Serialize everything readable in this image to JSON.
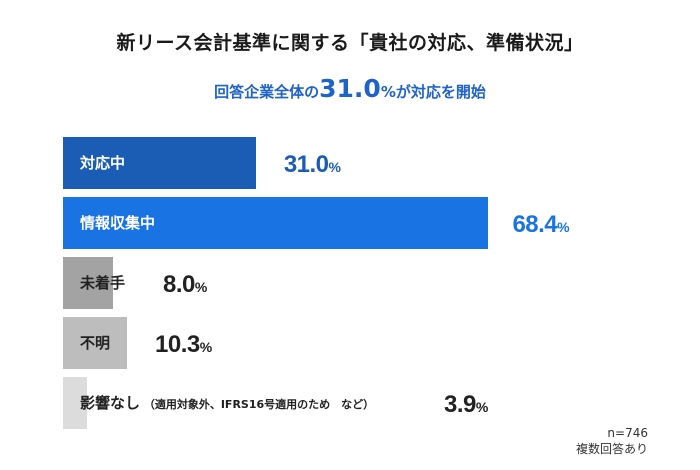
{
  "title": "新リース会計基準に関する「貴社の対応、準備状況」",
  "subtitle": {
    "prefix": "回答企業全体の",
    "highlight": "31.0",
    "highlight_unit": "%",
    "suffix": "が対応を開始"
  },
  "chart_data": {
    "type": "bar",
    "orientation": "horizontal",
    "unit": "%",
    "xlim": [
      0,
      100
    ],
    "categories": [
      "対応中",
      "情報収集中",
      "未着手",
      "不明",
      "影響なし"
    ],
    "category_notes": [
      "",
      "",
      "",
      "",
      "（適用対象外、IFRS16号適用のため　など）"
    ],
    "values": [
      31.0,
      68.4,
      8.0,
      10.3,
      3.9
    ],
    "bar_colors": [
      "#1b5db5",
      "#1a73e3",
      "#a3a3a3",
      "#bdbdbd",
      "#dcdcdc"
    ],
    "label_colors": [
      "#ffffff",
      "#ffffff",
      "#222222",
      "#222222",
      "#222222"
    ],
    "value_colors": [
      "#1b5db5",
      "#1a73e3",
      "#222222",
      "#222222",
      "#222222"
    ]
  },
  "footnote": {
    "sample": "n=746",
    "note": "複数回答あり"
  }
}
